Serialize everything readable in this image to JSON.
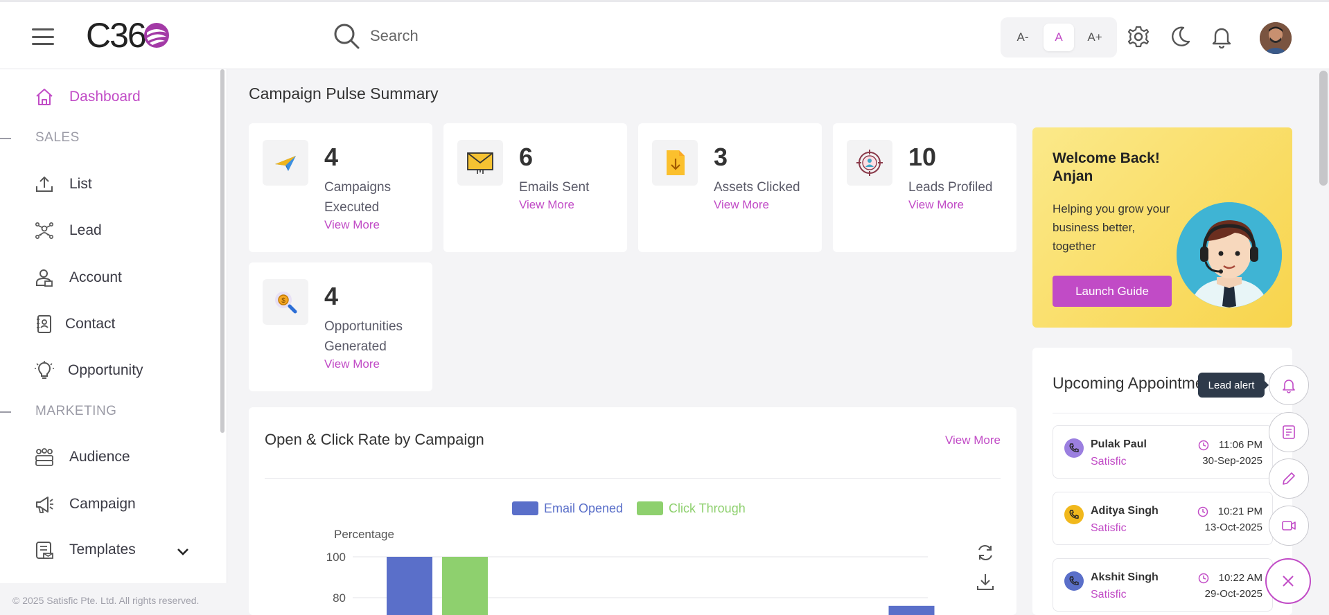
{
  "header": {
    "logo_text": "C36",
    "search_placeholder": "Search",
    "font_controls": [
      "A-",
      "A",
      "A+"
    ]
  },
  "sidebar": {
    "dashboard": "Dashboard",
    "sales_section": "SALES",
    "sales_items": [
      "List",
      "Lead",
      "Account",
      "Contact",
      "Opportunity"
    ],
    "marketing_section": "MARKETING",
    "marketing_items": [
      "Audience",
      "Campaign",
      "Templates"
    ],
    "copyright": "© 2025 Satisfic Pte. Ltd. All rights reserved."
  },
  "main": {
    "title": "Campaign Pulse Summary",
    "stats": [
      {
        "value": "4",
        "label": "Campaigns Executed",
        "link": "View More",
        "icon": "paper-plane-icon"
      },
      {
        "value": "6",
        "label": "Emails Sent",
        "link": "View More",
        "icon": "envelope-icon"
      },
      {
        "value": "3",
        "label": "Assets Clicked",
        "link": "View More",
        "icon": "download-file-icon"
      },
      {
        "value": "10",
        "label": "Leads Profiled",
        "link": "View More",
        "icon": "target-user-icon"
      },
      {
        "value": "4",
        "label": "Opportunities Generated",
        "link": "View More",
        "icon": "coin-search-icon"
      }
    ],
    "welcome": {
      "title_line1": "Welcome Back!",
      "title_line2": "Anjan",
      "message": "Helping you grow your business better, together",
      "button": "Launch Guide"
    }
  },
  "chart_data": {
    "type": "bar",
    "title": "Open & Click Rate by Campaign",
    "link": "View More",
    "ylabel": "Percentage",
    "ylim": [
      0,
      100
    ],
    "yticks_visible": [
      100,
      80
    ],
    "series": [
      {
        "name": "Email Opened",
        "color": "#5a6fc9",
        "values": [
          100,
          null,
          null,
          null,
          null,
          null,
          null,
          76
        ]
      },
      {
        "name": "Click Through",
        "color": "#8ed06e",
        "values": [
          100,
          null,
          null,
          null,
          null,
          null,
          null,
          null
        ]
      }
    ]
  },
  "appointments": {
    "title": "Upcoming Appointments",
    "items": [
      {
        "name": "Pulak Paul",
        "org": "Satisfic",
        "time": "11:06 PM",
        "date": "30-Sep-2025",
        "phone_color": "#9b7fe0"
      },
      {
        "name": "Aditya Singh",
        "org": "Satisfic",
        "time": "10:21 PM",
        "date": "13-Oct-2025",
        "phone_color": "#f1b81c"
      },
      {
        "name": "Akshit Singh",
        "org": "Satisfic",
        "time": "10:22 AM",
        "date": "29-Oct-2025",
        "phone_color": "#5a6fc9"
      }
    ]
  },
  "fab": {
    "tooltip": "Lead alert",
    "actions": [
      "bell-icon",
      "note-icon",
      "pencil-icon",
      "video-icon",
      "close-icon"
    ]
  },
  "colors": {
    "accent": "#c14bc6",
    "email_opened": "#5a6fc9",
    "click_through": "#8ed06e"
  }
}
